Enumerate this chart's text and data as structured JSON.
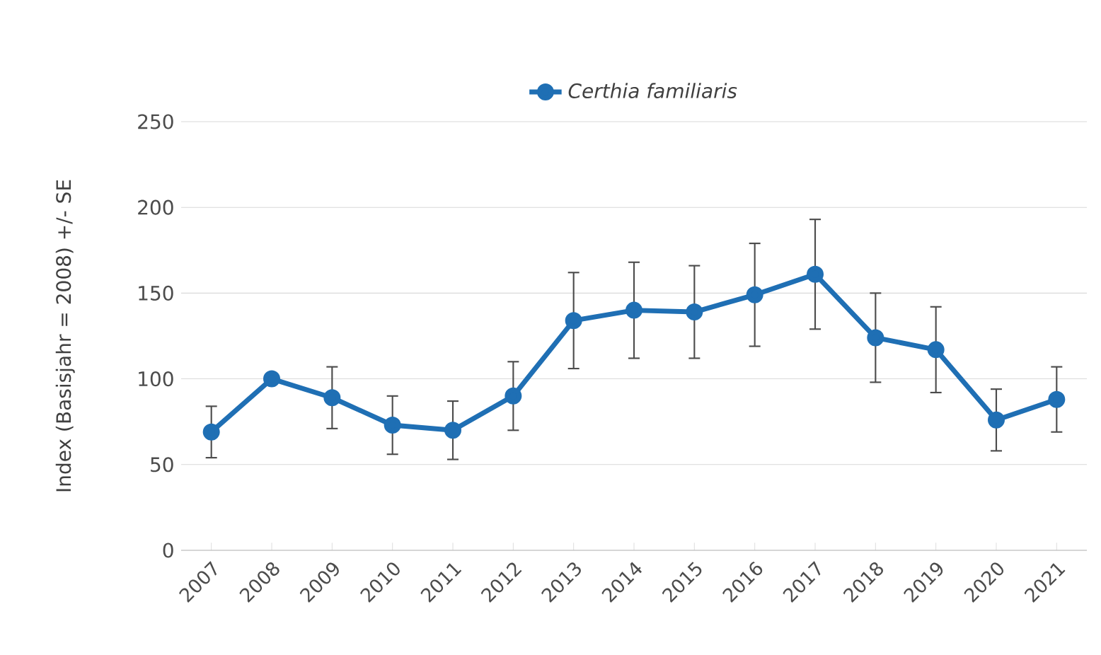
{
  "chart_data": {
    "type": "line",
    "categories": [
      "2007",
      "2008",
      "2009",
      "2010",
      "2011",
      "2012",
      "2013",
      "2014",
      "2015",
      "2016",
      "2017",
      "2018",
      "2019",
      "2020",
      "2021"
    ],
    "series": [
      {
        "name": "Certhia familiaris",
        "color": "#1f6fb4",
        "values": [
          69,
          100,
          89,
          73,
          70,
          90,
          134,
          140,
          139,
          149,
          161,
          124,
          117,
          76,
          88
        ],
        "errors": [
          15,
          null,
          18,
          17,
          17,
          20,
          28,
          28,
          27,
          30,
          32,
          26,
          25,
          18,
          19
        ]
      }
    ],
    "ylabel": "Index (Basisjahr = 2008) +/- SE",
    "ylim": [
      0,
      250
    ],
    "yticks": [
      0,
      50,
      100,
      150,
      200,
      250
    ],
    "grid": "y",
    "legend": "top",
    "marker": "circle",
    "line_style": "solid"
  }
}
